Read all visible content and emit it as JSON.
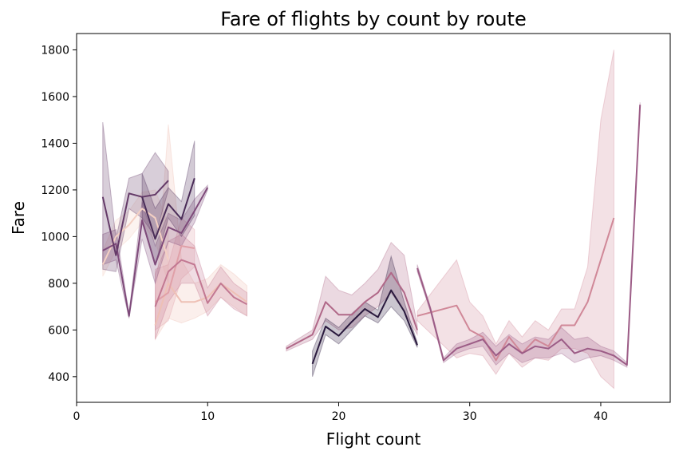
{
  "chart_data": {
    "type": "line",
    "title": "Fare of flights by count by route",
    "xlabel": "Flight count",
    "ylabel": "Fare",
    "xlim": [
      0,
      45.3
    ],
    "ylim": [
      290,
      1870
    ],
    "xticks": [
      0,
      10,
      20,
      30,
      40
    ],
    "yticks": [
      400,
      600,
      800,
      1000,
      1200,
      1400,
      1600,
      1800
    ],
    "grid": false,
    "legend": "none",
    "series": [
      {
        "color": "#f4d0c3",
        "x": [
          2,
          3,
          4,
          5,
          6,
          7
        ],
        "y": [
          880,
          1000,
          1050,
          1120,
          1080,
          900
        ],
        "band_low": [
          830,
          940,
          990,
          1060,
          980,
          800
        ],
        "band_high": [
          940,
          1070,
          1110,
          1190,
          1200,
          1050
        ]
      },
      {
        "color": "#eec0b5",
        "x": [
          6,
          7,
          8,
          9,
          10,
          11,
          12,
          13
        ],
        "y": [
          620,
          800,
          720,
          720,
          740,
          800,
          760,
          720
        ],
        "band_low": [
          560,
          650,
          630,
          650,
          680,
          740,
          700,
          660
        ],
        "band_high": [
          700,
          1480,
          900,
          800,
          820,
          880,
          840,
          790
        ]
      },
      {
        "color": "#e0a0a8",
        "x": [
          6,
          7,
          8,
          9
        ],
        "y": [
          720,
          760,
          960,
          950
        ],
        "band_low": [
          600,
          640,
          820,
          870
        ],
        "band_high": [
          860,
          880,
          1080,
          1030
        ]
      },
      {
        "color": "#d08898",
        "x": [
          26,
          29,
          30,
          31,
          32,
          33,
          34,
          35,
          36,
          37,
          38,
          39,
          40,
          41
        ],
        "y": [
          660,
          705,
          600,
          570,
          470,
          570,
          500,
          560,
          530,
          620,
          620,
          720,
          900,
          1080
        ],
        "band_low": [
          640,
          480,
          500,
          490,
          410,
          500,
          440,
          480,
          470,
          520,
          520,
          500,
          400,
          350
        ],
        "band_high": [
          680,
          900,
          720,
          660,
          540,
          640,
          570,
          640,
          600,
          690,
          690,
          870,
          1500,
          1800
        ]
      },
      {
        "color": "#c27892",
        "x": [
          6,
          7,
          8,
          9,
          10,
          11,
          12,
          13
        ],
        "y": [
          700,
          850,
          900,
          880,
          715,
          800,
          740,
          710
        ],
        "band_low": [
          560,
          720,
          800,
          800,
          660,
          740,
          690,
          660
        ],
        "band_high": [
          840,
          980,
          1010,
          960,
          780,
          870,
          800,
          760
        ]
      },
      {
        "color": "#b06888",
        "x": [
          16,
          18,
          19,
          20,
          21,
          22,
          23,
          24,
          25,
          26
        ],
        "y": [
          520,
          580,
          720,
          665,
          665,
          720,
          760,
          845,
          760,
          600
        ],
        "band_low": [
          510,
          560,
          640,
          600,
          610,
          660,
          700,
          760,
          680,
          580
        ],
        "band_high": [
          530,
          600,
          830,
          770,
          750,
          800,
          860,
          975,
          920,
          620
        ]
      },
      {
        "color": "#9c5c86",
        "x": [
          26,
          27,
          28,
          29,
          30,
          31,
          32,
          33,
          34,
          35,
          36,
          37,
          38,
          39,
          40,
          41,
          42,
          43
        ],
        "y": [
          865,
          690,
          470,
          520,
          540,
          560,
          490,
          540,
          500,
          530,
          520,
          560,
          500,
          520,
          510,
          490,
          450,
          1565
        ],
        "band_low": [
          850,
          680,
          460,
          500,
          520,
          530,
          450,
          500,
          460,
          480,
          480,
          500,
          460,
          480,
          490,
          470,
          440,
          1555
        ],
        "band_high": [
          880,
          700,
          480,
          540,
          560,
          590,
          530,
          580,
          540,
          570,
          560,
          610,
          560,
          570,
          530,
          510,
          460,
          1575
        ]
      },
      {
        "color": "#7e4a7a",
        "x": [
          2,
          3,
          4,
          5,
          6,
          7,
          8,
          9,
          10
        ],
        "y": [
          940,
          970,
          660,
          1070,
          880,
          1040,
          1015,
          1110,
          1210
        ],
        "band_low": [
          880,
          900,
          650,
          990,
          800,
          980,
          960,
          1060,
          1200
        ],
        "band_high": [
          1010,
          1030,
          670,
          1150,
          960,
          1100,
          1070,
          1160,
          1220
        ]
      },
      {
        "color": "#643a68",
        "x": [
          2,
          3,
          4,
          5,
          6,
          7
        ],
        "y": [
          1170,
          920,
          1185,
          1170,
          1180,
          1240
        ],
        "band_low": [
          860,
          850,
          1120,
          1080,
          1000,
          1200
        ],
        "band_high": [
          1490,
          990,
          1250,
          1270,
          1360,
          1280
        ]
      },
      {
        "color": "#4a2c58",
        "x": [
          5,
          6,
          7,
          8,
          9
        ],
        "y": [
          1170,
          990,
          1140,
          1075,
          1250
        ],
        "band_low": [
          1060,
          880,
          1080,
          1000,
          1090
        ],
        "band_high": [
          1270,
          1120,
          1210,
          1150,
          1410
        ]
      },
      {
        "color": "#2a1a3e",
        "x": [
          18,
          19,
          20,
          21,
          22,
          23,
          24,
          25,
          26
        ],
        "y": [
          455,
          615,
          575,
          635,
          690,
          655,
          770,
          680,
          535
        ],
        "band_low": [
          400,
          580,
          540,
          600,
          660,
          630,
          700,
          640,
          525
        ],
        "band_high": [
          510,
          650,
          610,
          670,
          720,
          685,
          915,
          720,
          545
        ]
      }
    ]
  }
}
